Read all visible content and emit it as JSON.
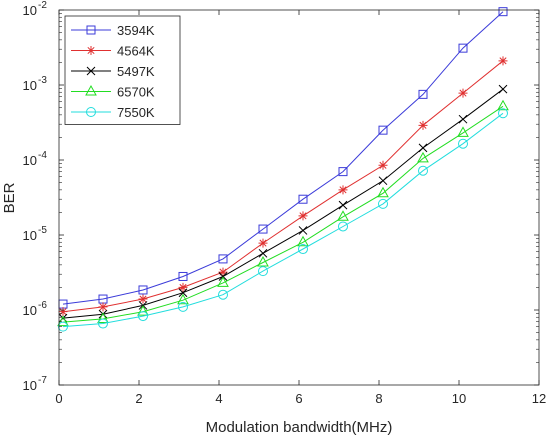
{
  "chart_data": {
    "type": "line",
    "xlabel": "Modulation bandwidth(MHz)",
    "ylabel": "BER",
    "xlim": [
      0,
      12
    ],
    "ylim": [
      1e-07,
      0.01
    ],
    "y_scale": "log",
    "grid": false,
    "legend_position": "top-left",
    "x_ticks": [
      0,
      2,
      4,
      6,
      8,
      10,
      12
    ],
    "y_ticks": [
      {
        "exp": -7,
        "mant": "10",
        "sup": "-7"
      },
      {
        "exp": -6,
        "mant": "10",
        "sup": "-6"
      },
      {
        "exp": -5,
        "mant": "10",
        "sup": "-5"
      },
      {
        "exp": -4,
        "mant": "10",
        "sup": "-4"
      },
      {
        "exp": -3,
        "mant": "10",
        "sup": "-3"
      },
      {
        "exp": -2,
        "mant": "10",
        "sup": "-2"
      }
    ],
    "x": [
      0.1,
      1.1,
      2.1,
      3.1,
      4.1,
      5.1,
      6.1,
      7.1,
      8.1,
      9.1,
      10.1,
      11.1
    ],
    "series": [
      {
        "name": "3594K",
        "marker": "square",
        "color": "#3b3bd9",
        "values": [
          1.2e-06,
          1.4e-06,
          1.85e-06,
          2.8e-06,
          4.8e-06,
          1.2e-05,
          3e-05,
          7e-05,
          0.00025,
          0.00075,
          0.0031,
          0.0095
        ]
      },
      {
        "name": "4564K",
        "marker": "asterisk",
        "color": "#e03030",
        "values": [
          9.5e-07,
          1.1e-06,
          1.4e-06,
          2e-06,
          3.2e-06,
          7.8e-06,
          1.8e-05,
          4e-05,
          8.5e-05,
          0.00029,
          0.00078,
          0.0021
        ]
      },
      {
        "name": "5497K",
        "marker": "x",
        "color": "#000000",
        "values": [
          7.8e-07,
          8.8e-07,
          1.15e-06,
          1.7e-06,
          2.8e-06,
          5.7e-06,
          1.15e-05,
          2.5e-05,
          5.3e-05,
          0.000145,
          0.00035,
          0.00088
        ]
      },
      {
        "name": "6570K",
        "marker": "triangle",
        "color": "#22dd22",
        "values": [
          6.9e-07,
          7.6e-07,
          9.5e-07,
          1.35e-06,
          2.3e-06,
          4.3e-06,
          8e-06,
          1.75e-05,
          3.6e-05,
          0.000105,
          0.00023,
          0.00052
        ]
      },
      {
        "name": "7550K",
        "marker": "circle",
        "color": "#22dddd",
        "values": [
          6e-07,
          6.6e-07,
          8.3e-07,
          1.1e-06,
          1.6e-06,
          3.3e-06,
          6.5e-06,
          1.3e-05,
          2.6e-05,
          7.2e-05,
          0.000165,
          0.00042
        ]
      }
    ]
  }
}
